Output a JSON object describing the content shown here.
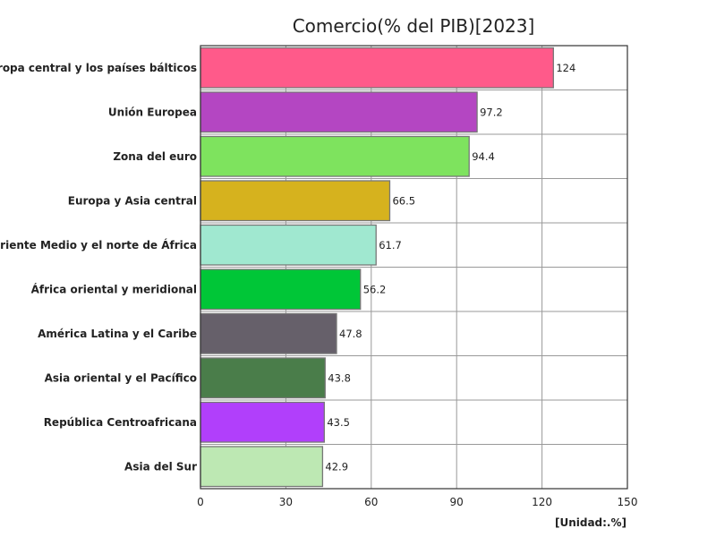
{
  "chart_data": {
    "type": "bar",
    "orientation": "horizontal",
    "title": "Comercio(% del PIB)[2023]",
    "unit_label": "[Unidad:.%]",
    "xlim": [
      0,
      150
    ],
    "x_ticks": [
      0,
      30,
      60,
      90,
      120,
      150
    ],
    "grid": true,
    "categories": [
      "Europa central y los países bálticos",
      "Unión Europea",
      "Zona del euro",
      "Europa y Asia central",
      "Oriente Medio y el norte de África",
      "África oriental y meridional",
      "América Latina y el Caribe",
      "Asia oriental y el Pacífico",
      "República Centroafricana",
      "Asia del Sur"
    ],
    "values": [
      124,
      97.2,
      94.4,
      66.5,
      61.7,
      56.2,
      47.8,
      43.8,
      43.5,
      42.9
    ],
    "value_labels": [
      "124",
      "97.2",
      "94.4",
      "66.5",
      "61.7",
      "56.2",
      "47.8",
      "43.8",
      "43.5",
      "42.9"
    ],
    "colors": [
      "#ff5a8a",
      "#b446c2",
      "#7ee35e",
      "#d6b21e",
      "#a0e8d0",
      "#00c637",
      "#66606a",
      "#4a7d4a",
      "#b13ffb",
      "#bde8b3"
    ]
  }
}
